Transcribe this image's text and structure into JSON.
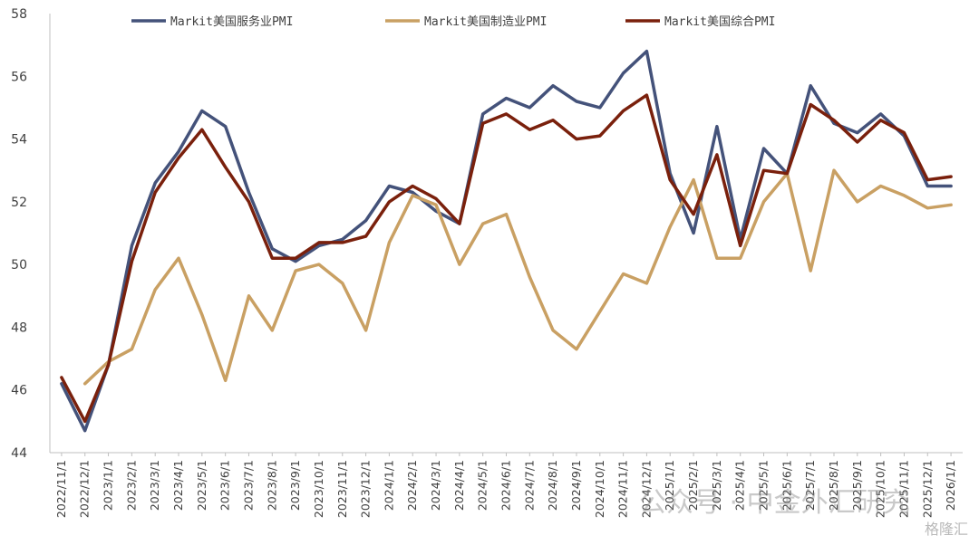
{
  "chart_data": {
    "type": "line",
    "title": "",
    "xlabel": "",
    "ylabel": "",
    "ylim": [
      44,
      58
    ],
    "yticks": [
      44,
      46,
      48,
      50,
      52,
      54,
      56,
      58
    ],
    "grid": false,
    "legend_position": "top",
    "categories": [
      "2022/11/1",
      "2022/12/1",
      "2023/1/1",
      "2023/2/1",
      "2023/3/1",
      "2023/4/1",
      "2023/5/1",
      "2023/6/1",
      "2023/7/1",
      "2023/8/1",
      "2023/9/1",
      "2023/10/1",
      "2023/11/1",
      "2023/12/1",
      "2024/1/1",
      "2024/2/1",
      "2024/3/1",
      "2024/4/1",
      "2024/5/1",
      "2024/6/1",
      "2024/7/1",
      "2024/8/1",
      "2024/9/1",
      "2024/10/1",
      "2024/11/1",
      "2024/12/1",
      "2025/1/1",
      "2025/2/1",
      "2025/3/1",
      "2025/4/1",
      "2025/5/1",
      "2025/6/1",
      "2025/7/1",
      "2025/8/1",
      "2025/9/1",
      "2025/10/1",
      "2025/11/1",
      "2025/12/1",
      "2026/1/1"
    ],
    "series": [
      {
        "name": "Markit美国服务业PMI",
        "color": "#44527A",
        "values": [
          46.2,
          44.7,
          46.8,
          50.6,
          52.6,
          53.6,
          54.9,
          54.4,
          52.3,
          50.5,
          50.1,
          50.6,
          50.8,
          51.4,
          52.5,
          52.3,
          51.7,
          51.3,
          54.8,
          55.3,
          55.0,
          55.7,
          55.2,
          55.0,
          56.1,
          56.8,
          52.9,
          51.0,
          54.4,
          50.8,
          53.7,
          52.9,
          55.7,
          54.5,
          54.2,
          54.8,
          54.1,
          52.5,
          52.5
        ]
      },
      {
        "name": "Markit美国制造业PMI",
        "color": "#C9A063",
        "values": [
          null,
          46.2,
          46.9,
          47.3,
          49.2,
          50.2,
          48.4,
          46.3,
          49.0,
          47.9,
          49.8,
          50.0,
          49.4,
          47.9,
          50.7,
          52.2,
          51.9,
          50.0,
          51.3,
          51.6,
          49.6,
          47.9,
          47.3,
          48.5,
          49.7,
          49.4,
          51.2,
          52.7,
          50.2,
          50.2,
          52.0,
          52.9,
          49.8,
          53.0,
          52.0,
          52.5,
          52.2,
          51.8,
          51.9
        ]
      },
      {
        "name": "Markit美国综合PMI",
        "color": "#7A200C",
        "values": [
          46.4,
          45.0,
          46.8,
          50.1,
          52.3,
          53.4,
          54.3,
          53.1,
          52.0,
          50.2,
          50.2,
          50.7,
          50.7,
          50.9,
          52.0,
          52.5,
          52.1,
          51.3,
          54.5,
          54.8,
          54.3,
          54.6,
          54.0,
          54.1,
          54.9,
          55.4,
          52.7,
          51.6,
          53.5,
          50.6,
          53.0,
          52.9,
          55.1,
          54.6,
          53.9,
          54.6,
          54.2,
          52.7,
          52.8
        ]
      }
    ],
    "watermark": "公众号 · 中金外汇研究",
    "corner_mark": "格隆汇"
  }
}
